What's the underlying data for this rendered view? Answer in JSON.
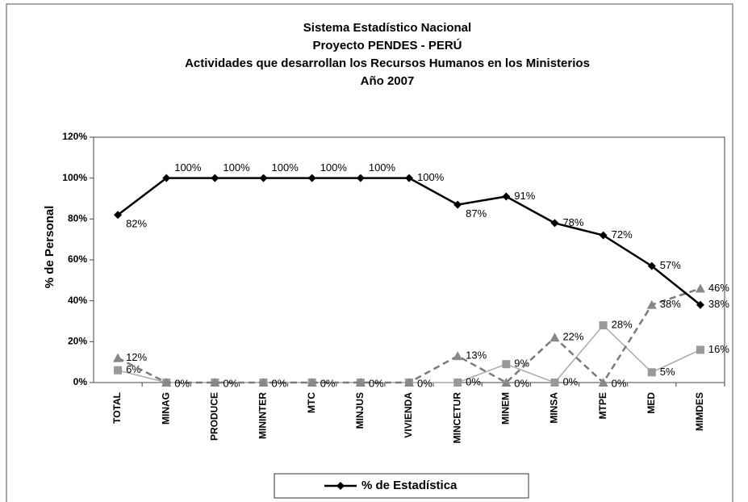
{
  "chart_data": {
    "type": "line",
    "title": [
      "Sistema Estadístico Nacional",
      "Proyecto PENDES - PERÚ",
      "Actividades que desarrollan los Recursos Humanos en los Ministerios",
      "Año 2007"
    ],
    "ylabel": "% de Personal",
    "categories": [
      "TOTAL",
      "MINAG",
      "PRODUCE",
      "MININTER",
      "MTC",
      "MINJUS",
      "VIVIENDA",
      "MINCETUR",
      "MINEM",
      "MINSA",
      "MTPE",
      "MED",
      "MIMDES"
    ],
    "ylim": [
      0,
      120
    ],
    "yticks": [
      {
        "value": 0,
        "label": "0%"
      },
      {
        "value": 20,
        "label": "20%"
      },
      {
        "value": 40,
        "label": "40%"
      },
      {
        "value": 60,
        "label": "60%"
      },
      {
        "value": 80,
        "label": "80%"
      },
      {
        "value": 100,
        "label": "100%"
      },
      {
        "value": 120,
        "label": "120%"
      }
    ],
    "legend": "bottom",
    "series": [
      {
        "name": "% de Estadística",
        "color": "#000000",
        "marker": "diamond",
        "values": [
          82,
          100,
          100,
          100,
          100,
          100,
          100,
          87,
          91,
          78,
          72,
          57,
          38
        ],
        "value_labels": [
          "82%",
          "100%",
          "100%",
          "100%",
          "100%",
          "100%",
          "100%",
          "87%",
          "91%",
          "78%",
          "72%",
          "57%",
          "38%"
        ]
      },
      {
        "color": "#7a7a7a",
        "marker": "triangle",
        "dashed": true,
        "values": [
          12,
          0,
          0,
          0,
          0,
          0,
          0,
          13,
          0,
          22,
          0,
          38,
          46
        ],
        "value_labels": [
          "12%",
          "0%",
          "0%",
          "0%",
          "0%",
          "0%",
          "0%",
          "13%",
          "0%",
          "22%",
          "0%",
          "38%",
          "46%"
        ]
      },
      {
        "color": "#a9a9a9",
        "marker": "square",
        "values": [
          6,
          0,
          0,
          0,
          0,
          0,
          0,
          0,
          9,
          0,
          28,
          5,
          16
        ],
        "value_labels": [
          "6%",
          null,
          null,
          null,
          null,
          null,
          null,
          "0%",
          "9%",
          "0%",
          "28%",
          "5%",
          "16%"
        ]
      }
    ]
  }
}
